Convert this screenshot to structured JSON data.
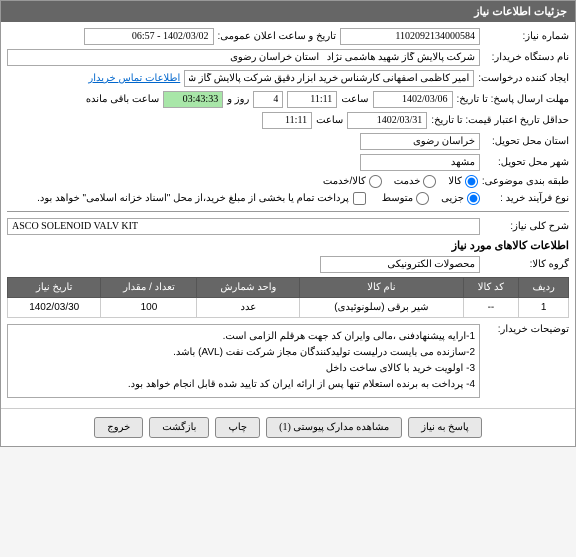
{
  "header": {
    "title": "جزئیات اطلاعات نیاز"
  },
  "fields": {
    "need_number_label": "شماره نیاز:",
    "need_number": "1102092134000584",
    "announce_datetime_label": "تاریخ و ساعت اعلان عمومی:",
    "announce_datetime": "1402/03/02 - 06:57",
    "buyer_org_label": "نام دستگاه خریدار:",
    "buyer_org": "شرکت پالایش گاز شهید هاشمی نژاد   استان خراسان رضوی",
    "requester_label": "ایجاد کننده درخواست:",
    "requester": "امیر کاظمی اصفهانی کارشناس خرید ابزار دقیق شرکت پالایش گاز شهید هاش",
    "contact_link": "اطلاعات تماس خریدار",
    "deadline_label": "مهلت ارسال پاسخ: تا تاریخ:",
    "deadline_date": "1402/03/06",
    "time_label": "ساعت",
    "deadline_time": "11:11",
    "days": "4",
    "days_label": "روز و",
    "remaining_time": "03:43:33",
    "remaining_label": "ساعت باقی مانده",
    "price_validity_label": "حداقل تاریخ اعتبار قیمت: تا تاریخ:",
    "price_validity_date": "1402/03/31",
    "price_validity_time": "11:11",
    "need_province_label": "استان محل تحویل:",
    "need_province": "خراسان رضوی",
    "need_city_label": "شهر محل تحویل:",
    "need_city": "مشهد",
    "subject_classify_label": "طبقه بندی موضوعی:",
    "subject_goods": "کالا",
    "subject_service": "خدمت",
    "subject_goods_service": "کالا/خدمت",
    "purchase_type_label": "نوع فرآیند خرید :",
    "purchase_small": "جزیی",
    "purchase_medium": "متوسط",
    "payment_note": "پرداخت تمام یا بخشی از مبلغ خرید،از محل \"اسناد خزانه اسلامی\" خواهد بود.",
    "need_desc_label": "شرح کلی نیاز:",
    "need_desc": "ASCO SOLENOID VALV KIT",
    "items_title": "اطلاعات کالاهای مورد نیاز",
    "group_label": "گروه کالا:",
    "group_value": "محصولات الکترونیکی",
    "buyer_notes_label": "توضیحات خریدار:",
    "buyer_notes_l1": "1-ارایه پیشنهادفنی ،مالی وایران کد جهت هرقلم الزامی است.",
    "buyer_notes_l2": "2-سازنده می بایست درلیست تولیدکنندگان مجاز شرکت نفت (AVL)  باشد.",
    "buyer_notes_l3": "3- اولویت خرید با کالای ساخت داخل",
    "buyer_notes_l4": "4- پرداخت به برنده استعلام تنها پس از ارائه ایران کد تایید شده قابل انجام خواهد بود."
  },
  "table": {
    "headers": [
      "ردیف",
      "کد کالا",
      "نام کالا",
      "واحد شمارش",
      "تعداد / مقدار",
      "تاریخ نیاز"
    ],
    "rows": [
      [
        "1",
        "--",
        "شیر برقی (سلونوئیدی)",
        "عدد",
        "100",
        "1402/03/30"
      ]
    ]
  },
  "buttons": {
    "respond": "پاسخ به نیاز",
    "attachments": "مشاهده مدارک پیوستی (1)",
    "print": "چاپ",
    "back": "بازگشت",
    "exit": "خروج"
  }
}
